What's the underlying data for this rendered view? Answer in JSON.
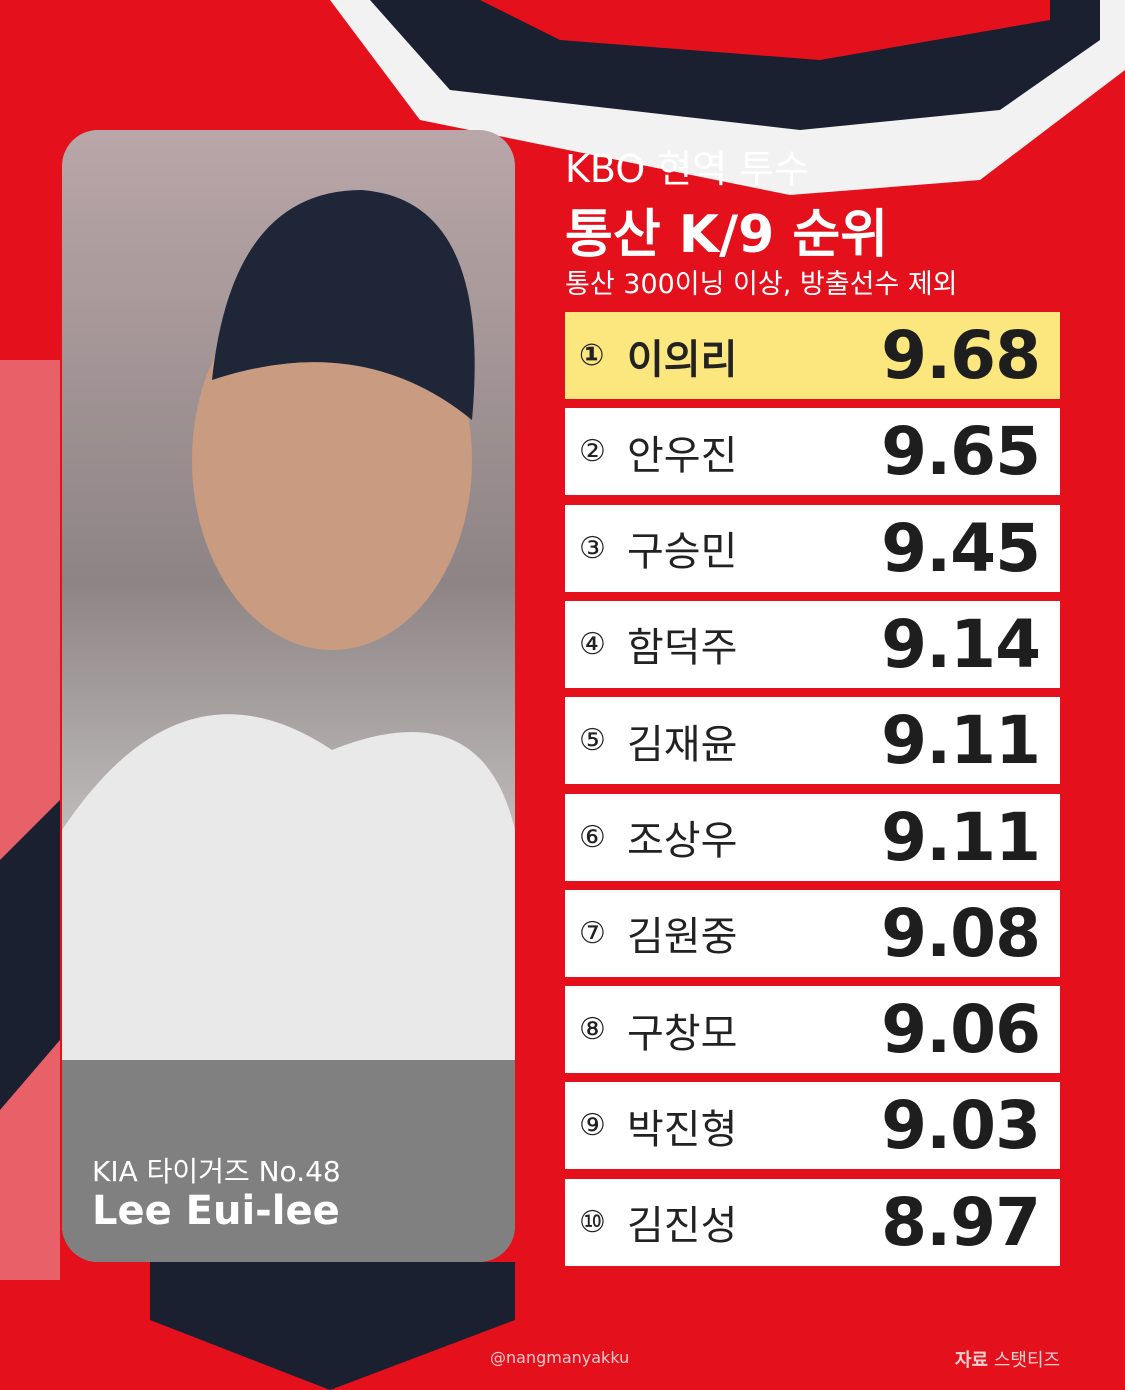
{
  "header": {
    "line1": "KBO 현역 투수",
    "title": "통산 K/9 순위",
    "subtitle": "통산 300이닝 이상, 방출선수 제외"
  },
  "ranking": {
    "rows": [
      {
        "rank": "①",
        "name": "이의리",
        "value": "9.68"
      },
      {
        "rank": "②",
        "name": "안우진",
        "value": "9.65"
      },
      {
        "rank": "③",
        "name": "구승민",
        "value": "9.45"
      },
      {
        "rank": "④",
        "name": "함덕주",
        "value": "9.14"
      },
      {
        "rank": "⑤",
        "name": "김재윤",
        "value": "9.11"
      },
      {
        "rank": "⑥",
        "name": "조상우",
        "value": "9.11"
      },
      {
        "rank": "⑦",
        "name": "김원중",
        "value": "9.08"
      },
      {
        "rank": "⑧",
        "name": "구창모",
        "value": "9.06"
      },
      {
        "rank": "⑨",
        "name": "박진형",
        "value": "9.03"
      },
      {
        "rank": "⑩",
        "name": "김진성",
        "value": "8.97"
      }
    ]
  },
  "photo": {
    "caption": "KIA 타이거즈 No.48",
    "name": "Lee Eui-lee"
  },
  "footer": {
    "handle": "@nangmanyakku",
    "source_label": "자료",
    "source": "스탯티즈"
  }
}
